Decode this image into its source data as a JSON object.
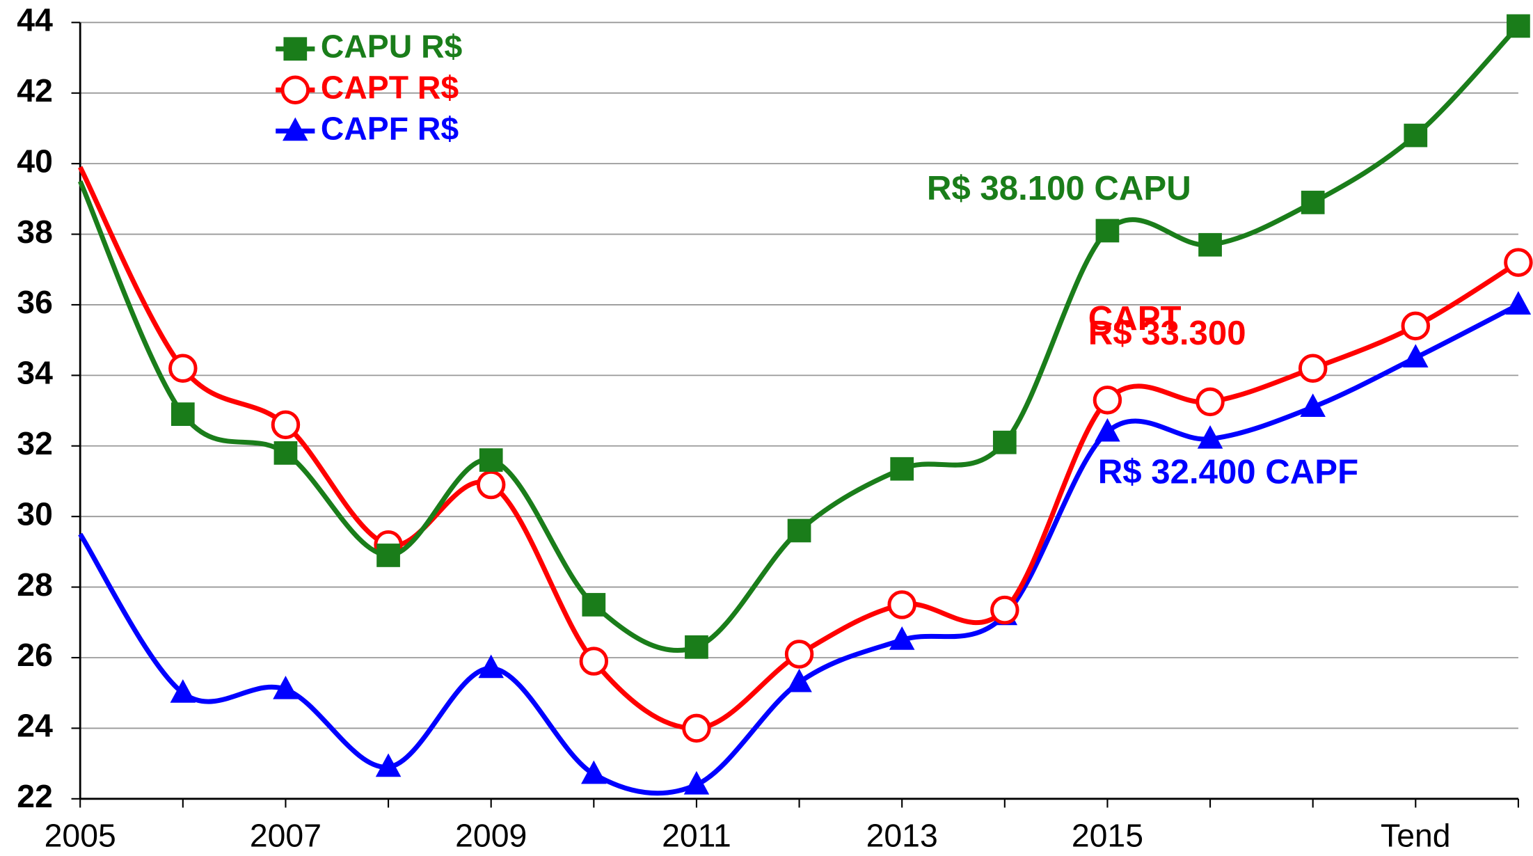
{
  "chart_data": {
    "type": "line",
    "categories": [
      "2005",
      null,
      "2007",
      null,
      "2009",
      null,
      "2011",
      null,
      "2013",
      null,
      "2015",
      null,
      null,
      "Tend",
      null
    ],
    "series": [
      {
        "name": "CAPU R$",
        "color": "#1a7d1a",
        "marker": "square",
        "values": [
          39.5,
          32.9,
          31.8,
          28.9,
          31.6,
          27.5,
          26.3,
          29.6,
          31.35,
          32.1,
          38.1,
          37.7,
          38.9,
          40.8,
          43.9
        ]
      },
      {
        "name": "CAPT R$",
        "color": "#ff0000",
        "marker": "circle",
        "values": [
          39.9,
          34.2,
          32.6,
          29.2,
          30.9,
          25.9,
          24.0,
          26.1,
          27.5,
          27.35,
          33.3,
          33.25,
          34.2,
          35.4,
          37.2
        ]
      },
      {
        "name": "CAPF R$",
        "color": "#0000ff",
        "marker": "triangle",
        "values": [
          29.5,
          25.0,
          25.1,
          22.9,
          25.7,
          22.7,
          22.4,
          25.3,
          26.5,
          27.2,
          32.4,
          32.2,
          33.1,
          34.5,
          36.0
        ]
      }
    ],
    "annotations": [
      "R$ 38.100 CAPU",
      "CAPT",
      "R$ 33.300",
      "R$ 32.400  CAPF"
    ],
    "ylim": [
      22,
      44
    ],
    "yticks": [
      22,
      24,
      26,
      28,
      30,
      32,
      34,
      36,
      38,
      40,
      42,
      44
    ],
    "grid": true,
    "legend": "upper left"
  }
}
